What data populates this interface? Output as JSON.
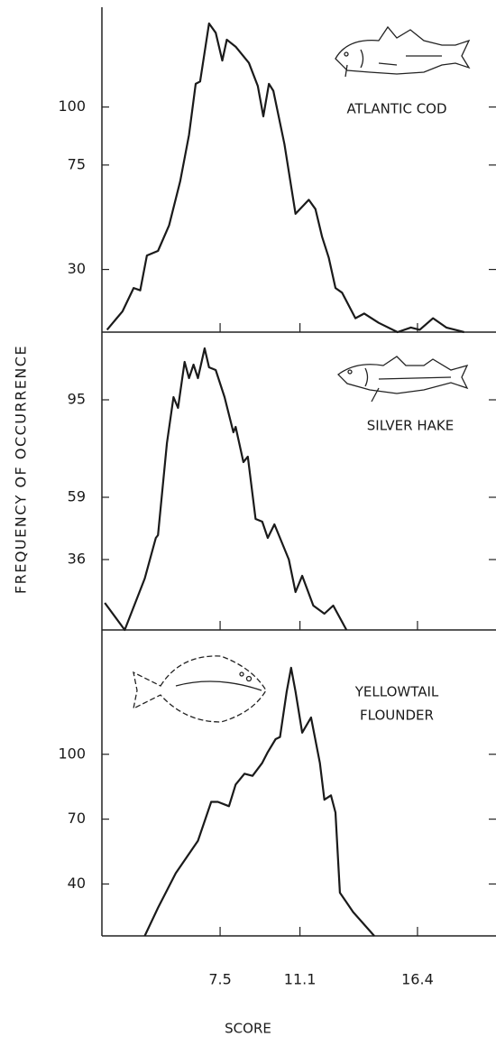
{
  "chart_data": [
    {
      "type": "line",
      "title": "ATLANTIC COD",
      "color": "#1a1a1a",
      "x": [
        2.4,
        3.1,
        3.6,
        3.9,
        4.2,
        4.7,
        5.2,
        5.7,
        6.1,
        6.4,
        6.6,
        7.0,
        7.3,
        7.6,
        7.8,
        8.2,
        8.8,
        9.2,
        9.45,
        9.7,
        9.9,
        10.4,
        10.9,
        11.5,
        11.8,
        12.1,
        12.4,
        12.7,
        13.0,
        13.6,
        14.0,
        14.65,
        15.5,
        16.1,
        16.5,
        17.1,
        17.7,
        18.5
      ],
      "values": [
        4,
        12,
        22,
        21,
        36,
        38,
        49,
        68,
        88,
        110,
        111,
        136,
        132,
        120,
        129,
        126,
        119,
        109,
        96,
        110,
        107,
        84,
        54,
        60,
        56,
        44,
        35,
        22,
        20,
        9,
        11,
        7,
        3,
        5,
        4,
        9,
        5,
        3
      ],
      "ylim": [
        3,
        143
      ],
      "yticks": [
        30,
        75,
        100
      ]
    },
    {
      "type": "line",
      "title": "SILVER HAKE",
      "color": "#1a1a1a",
      "ylabel": "FREQUENCY OF OCCURRENCE",
      "x": [
        2.3,
        3.2,
        4.1,
        4.6,
        4.7,
        5.1,
        5.4,
        5.6,
        5.9,
        6.1,
        6.3,
        6.5,
        6.8,
        7.0,
        7.3,
        7.7,
        8.1,
        8.2,
        8.55,
        8.75,
        9.1,
        9.4,
        9.65,
        9.95,
        10.6,
        10.9,
        11.2,
        11.7,
        12.2,
        12.6,
        13.2
      ],
      "values": [
        20,
        10,
        29,
        44,
        45,
        79,
        96,
        92,
        109,
        103,
        108,
        103,
        114,
        107,
        106,
        96,
        83,
        85,
        72,
        74,
        51,
        50,
        44,
        49,
        36,
        24,
        30,
        19,
        16,
        19,
        10
      ],
      "ylim": [
        10,
        120
      ],
      "yticks": [
        36,
        59,
        95
      ]
    },
    {
      "type": "line",
      "title": [
        "YELLOWTAIL",
        "FLOUNDER"
      ],
      "color": "#1a1a1a",
      "xlabel": "SCORE",
      "x": [
        4.1,
        4.7,
        5.5,
        6.5,
        7.1,
        7.4,
        7.9,
        8.2,
        8.6,
        8.96,
        9.4,
        9.65,
        10.0,
        10.2,
        10.5,
        10.7,
        10.9,
        11.2,
        11.6,
        12.0,
        12.2,
        12.5,
        12.7,
        12.9,
        13.5,
        14.45
      ],
      "values": [
        16,
        29,
        45,
        60,
        78,
        78,
        76,
        86,
        91,
        90,
        96,
        101,
        107,
        108,
        129,
        140,
        129,
        110,
        117,
        96,
        79,
        81,
        73,
        36,
        27,
        16
      ],
      "ylim": [
        16,
        157.5
      ],
      "yticks": [
        40,
        70,
        100
      ],
      "xlim": [
        2.17,
        19.94
      ],
      "xticks": [
        7.5,
        11.1,
        16.4
      ]
    }
  ]
}
